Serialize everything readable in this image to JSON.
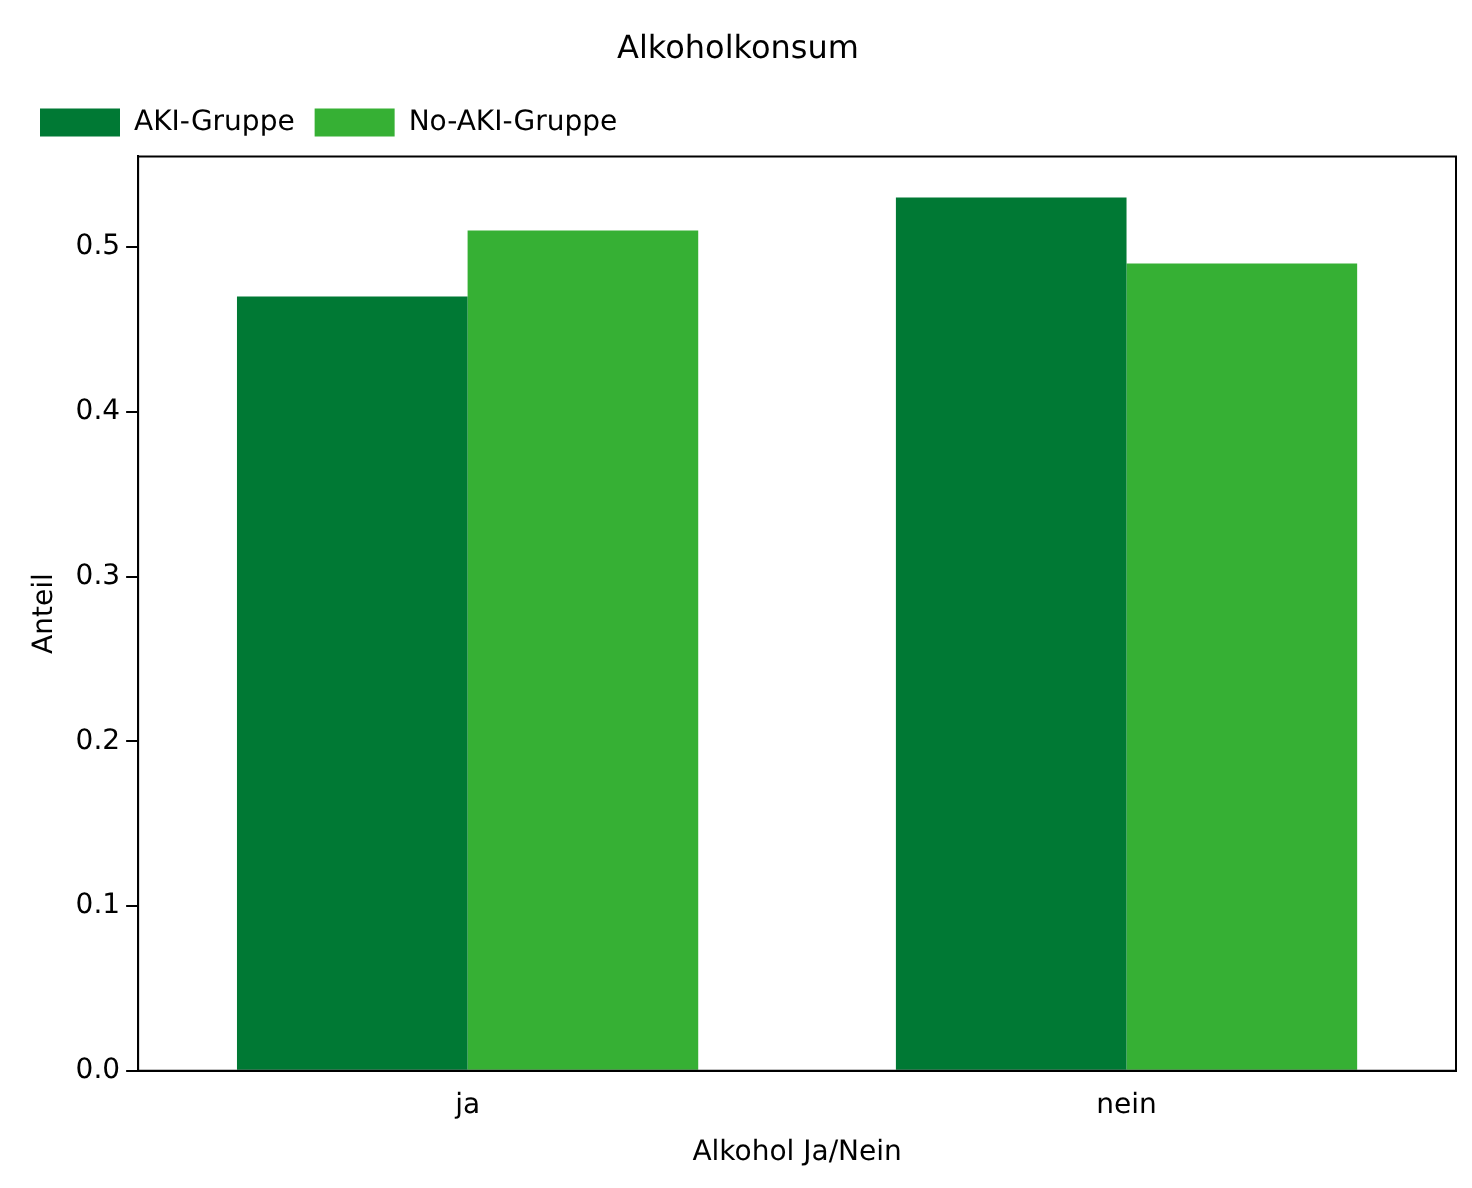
{
  "chart_data": {
    "type": "bar",
    "title": "Alkoholkonsum",
    "xlabel": "Alkohol Ja/Nein",
    "ylabel": "Anteil",
    "categories": [
      "ja",
      "nein"
    ],
    "series": [
      {
        "name": "AKI-Gruppe",
        "color": "#007934",
        "values": [
          0.47,
          0.53
        ]
      },
      {
        "name": "No-AKI-Gruppe",
        "color": "#36b034",
        "values": [
          0.51,
          0.49
        ]
      }
    ],
    "ylim": [
      0,
      0.555
    ],
    "yticks": [
      {
        "value": 0,
        "label": "0.0"
      },
      0.1,
      0.2,
      0.3,
      0.4,
      0.5
    ],
    "grid": false,
    "legend": "top left"
  }
}
